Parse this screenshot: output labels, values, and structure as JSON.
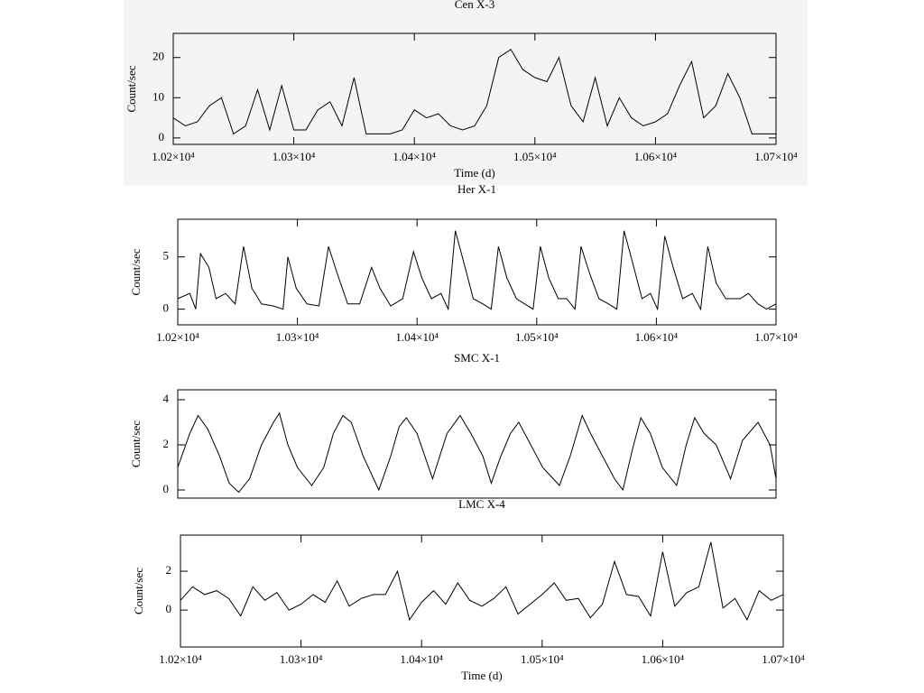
{
  "chart_data": [
    {
      "type": "line",
      "title": "Cen X-3",
      "ylabel": "Count/sec",
      "xlabel": "Time (d)",
      "color": "#000000",
      "xlim": [
        10200,
        10700
      ],
      "ylim": [
        -1.6,
        26
      ],
      "yticks": [
        0,
        10,
        20
      ],
      "xticks": [
        {
          "value": 10200,
          "label": "1.02×10⁴"
        },
        {
          "value": 10300,
          "label": "1.03×10⁴"
        },
        {
          "value": 10400,
          "label": "1.04×10⁴"
        },
        {
          "value": 10500,
          "label": "1.05×10⁴"
        },
        {
          "value": 10600,
          "label": "1.06×10⁴"
        },
        {
          "value": 10700,
          "label": "1.07×10⁴"
        }
      ],
      "x": [
        10200,
        10210,
        10220,
        10230,
        10240,
        10250,
        10260,
        10270,
        10280,
        10290,
        10300,
        10310,
        10320,
        10330,
        10340,
        10350,
        10360,
        10370,
        10380,
        10390,
        10400,
        10410,
        10420,
        10430,
        10440,
        10450,
        10460,
        10470,
        10480,
        10490,
        10500,
        10510,
        10520,
        10530,
        10540,
        10550,
        10560,
        10570,
        10580,
        10590,
        10600,
        10610,
        10620,
        10630,
        10640,
        10650,
        10660,
        10670,
        10680,
        10690,
        10700
      ],
      "values": [
        5,
        3,
        4,
        8,
        10,
        1,
        3,
        12,
        2,
        13,
        2,
        2,
        7,
        9,
        3,
        15,
        1,
        1,
        1,
        2,
        7,
        5,
        6,
        3,
        2,
        3,
        8,
        20,
        22,
        17,
        15,
        14,
        20,
        8,
        4,
        15,
        3,
        10,
        5,
        3,
        4,
        6,
        13,
        19,
        5,
        8,
        16,
        10,
        1,
        1,
        1
      ]
    },
    {
      "type": "line",
      "title": "Her X-1",
      "ylabel": "Count/sec",
      "color": "#000000",
      "xlim": [
        10200,
        10700
      ],
      "ylim": [
        -1.5,
        8.6
      ],
      "yticks": [
        0,
        5
      ],
      "xticks": [
        {
          "value": 10200,
          "label": "1.02×10⁴"
        },
        {
          "value": 10300,
          "label": "1.03×10⁴"
        },
        {
          "value": 10400,
          "label": "1.04×10⁴"
        },
        {
          "value": 10500,
          "label": "1.05×10⁴"
        },
        {
          "value": 10600,
          "label": "1.06×10⁴"
        },
        {
          "value": 10700,
          "label": "1.07×10⁴"
        }
      ],
      "x": [
        10200,
        10210,
        10215,
        10219,
        10226,
        10232,
        10240,
        10248,
        10255,
        10262,
        10270,
        10280,
        10288,
        10292,
        10299,
        10308,
        10318,
        10326,
        10333,
        10342,
        10352,
        10362,
        10369,
        10378,
        10388,
        10397,
        10404,
        10412,
        10420,
        10426,
        10432,
        10439,
        10447,
        10455,
        10462,
        10468,
        10475,
        10483,
        10490,
        10497,
        10503,
        10510,
        10518,
        10525,
        10532,
        10537,
        10544,
        10552,
        10560,
        10567,
        10573,
        10580,
        10588,
        10595,
        10601,
        10607,
        10614,
        10622,
        10630,
        10637,
        10643,
        10650,
        10658,
        10670,
        10677,
        10685,
        10692,
        10700
      ],
      "values": [
        1,
        1.5,
        0,
        5.3,
        4,
        1,
        1.5,
        0.5,
        6,
        2,
        0.5,
        0.3,
        0,
        5,
        2,
        0.5,
        0.3,
        6,
        3.5,
        0.5,
        0.5,
        4,
        2,
        0.3,
        1,
        5.5,
        3,
        1,
        1.5,
        0,
        7.5,
        4.5,
        1,
        0.5,
        0,
        6,
        3,
        1,
        0.5,
        0,
        6,
        3,
        1,
        1,
        0,
        6,
        3.5,
        1,
        0.5,
        0,
        7.5,
        4.5,
        1,
        1.5,
        0,
        7,
        4,
        1,
        1.5,
        0,
        6,
        2.5,
        1,
        1,
        1.5,
        0.5,
        0,
        0.5
      ]
    },
    {
      "type": "line",
      "title": "SMC X-1",
      "ylabel": "Count/sec",
      "color": "#000000",
      "xlim": [
        10200,
        10700
      ],
      "ylim": [
        -0.36,
        4.44
      ],
      "yticks": [
        0,
        2,
        4
      ],
      "x": [
        10200,
        10210,
        10217,
        10225,
        10235,
        10243,
        10251,
        10260,
        10270,
        10280,
        10285,
        10292,
        10300,
        10312,
        10322,
        10330,
        10338,
        10345,
        10355,
        10368,
        10378,
        10385,
        10391,
        10400,
        10413,
        10425,
        10436,
        10445,
        10455,
        10462,
        10470,
        10478,
        10485,
        10495,
        10505,
        10519,
        10528,
        10538,
        10545,
        10555,
        10565,
        10572,
        10580,
        10587,
        10595,
        10605,
        10617,
        10625,
        10632,
        10640,
        10650,
        10662,
        10672,
        10685,
        10695,
        10700
      ],
      "values": [
        1,
        2.5,
        3.3,
        2.7,
        1.5,
        0.3,
        -0.1,
        0.5,
        2,
        3,
        3.4,
        2,
        1,
        0.2,
        1,
        2.5,
        3.3,
        3,
        1.5,
        0,
        1.5,
        2.8,
        3.2,
        2.5,
        0.5,
        2.5,
        3.3,
        2.5,
        1.5,
        0.3,
        1.5,
        2.5,
        3,
        2,
        1,
        0.2,
        1.5,
        3.3,
        2.5,
        1.5,
        0.5,
        0,
        1.8,
        3.2,
        2.5,
        1,
        0.2,
        2,
        3.2,
        2.5,
        2,
        0.5,
        2.2,
        3,
        2,
        0.5
      ]
    },
    {
      "type": "line",
      "title": "LMC X-4",
      "ylabel": "Count/sec",
      "xlabel": "Time (d)",
      "color": "#000000",
      "xlim": [
        10200,
        10700
      ],
      "ylim": [
        -1.9,
        3.86
      ],
      "yticks": [
        0,
        2
      ],
      "xticks": [
        {
          "value": 10200,
          "label": "1.02×10⁴"
        },
        {
          "value": 10300,
          "label": "1.03×10⁴"
        },
        {
          "value": 10400,
          "label": "1.04×10⁴"
        },
        {
          "value": 10500,
          "label": "1.05×10⁴"
        },
        {
          "value": 10600,
          "label": "1.06×10⁴"
        },
        {
          "value": 10700,
          "label": "1.07×10⁴"
        }
      ],
      "x": [
        10200,
        10210,
        10220,
        10230,
        10240,
        10250,
        10260,
        10270,
        10280,
        10290,
        10300,
        10310,
        10320,
        10330,
        10340,
        10350,
        10360,
        10370,
        10380,
        10390,
        10400,
        10410,
        10420,
        10430,
        10440,
        10450,
        10460,
        10470,
        10480,
        10490,
        10500,
        10510,
        10520,
        10530,
        10540,
        10550,
        10560,
        10570,
        10580,
        10590,
        10600,
        10610,
        10620,
        10630,
        10640,
        10650,
        10660,
        10670,
        10680,
        10690,
        10700
      ],
      "values": [
        0.5,
        1.2,
        0.8,
        1.0,
        0.6,
        -0.3,
        1.2,
        0.5,
        0.9,
        0,
        0.3,
        0.8,
        0.4,
        1.5,
        0.2,
        0.6,
        0.8,
        0.8,
        2.0,
        -0.5,
        0.4,
        1.0,
        0.3,
        1.4,
        0.5,
        0.2,
        0.6,
        1.2,
        -0.2,
        0.3,
        0.8,
        1.4,
        0.5,
        0.6,
        -0.4,
        0.3,
        2.5,
        0.8,
        0.7,
        -0.3,
        3.0,
        0.2,
        0.9,
        1.2,
        3.5,
        0.1,
        0.6,
        -0.5,
        1.0,
        0.5,
        0.8
      ]
    }
  ]
}
